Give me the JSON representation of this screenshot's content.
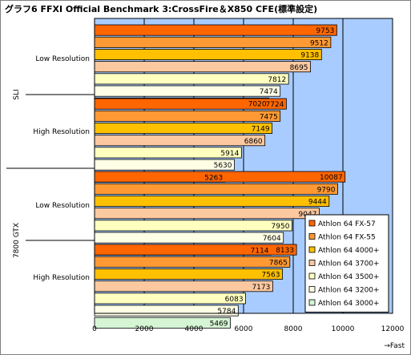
{
  "chart_data": {
    "type": "bar",
    "orientation": "horizontal",
    "title": "グラフ6  FFXI Official  Benchmark 3:CrossFire＆X850 CFE(標準設定)",
    "xlabel": "→Fast",
    "xlim": [
      0,
      12000
    ],
    "xticks": [
      0,
      2000,
      4000,
      6000,
      8000,
      10000,
      12000
    ],
    "grid": true,
    "legend_position": "right",
    "outer_groups": [
      "SLI",
      "7800 GTX"
    ],
    "inner_groups": [
      "Low Resolution",
      "High Resolution"
    ],
    "series": [
      {
        "name": "Athlon 64 FX-57",
        "color": "#ff6600",
        "values": [
          9753,
          7724,
          10087,
          8133
        ]
      },
      {
        "name": "Athlon 64 FX-55",
        "color": "#ff9933",
        "values": [
          9512,
          7475,
          9790,
          7865
        ]
      },
      {
        "name": "Athlon 64 4000+",
        "color": "#ffc000",
        "values": [
          9138,
          7149,
          9444,
          7563
        ]
      },
      {
        "name": "Athlon 64 3700+",
        "color": "#fbc8a0",
        "values": [
          8695,
          6860,
          9047,
          7173
        ]
      },
      {
        "name": "Athlon 64 3500+",
        "color": "#ffffc0",
        "values": [
          7812,
          5914,
          7950,
          6083
        ]
      },
      {
        "name": "Athlon 64 3200+",
        "color": "#ffffe6",
        "values": [
          7474,
          5630,
          7604,
          5784
        ]
      },
      {
        "name": "Athlon 64 3000+",
        "color": "#d5f5d5",
        "values": [
          7020,
          5263,
          7114,
          5469
        ]
      }
    ]
  }
}
